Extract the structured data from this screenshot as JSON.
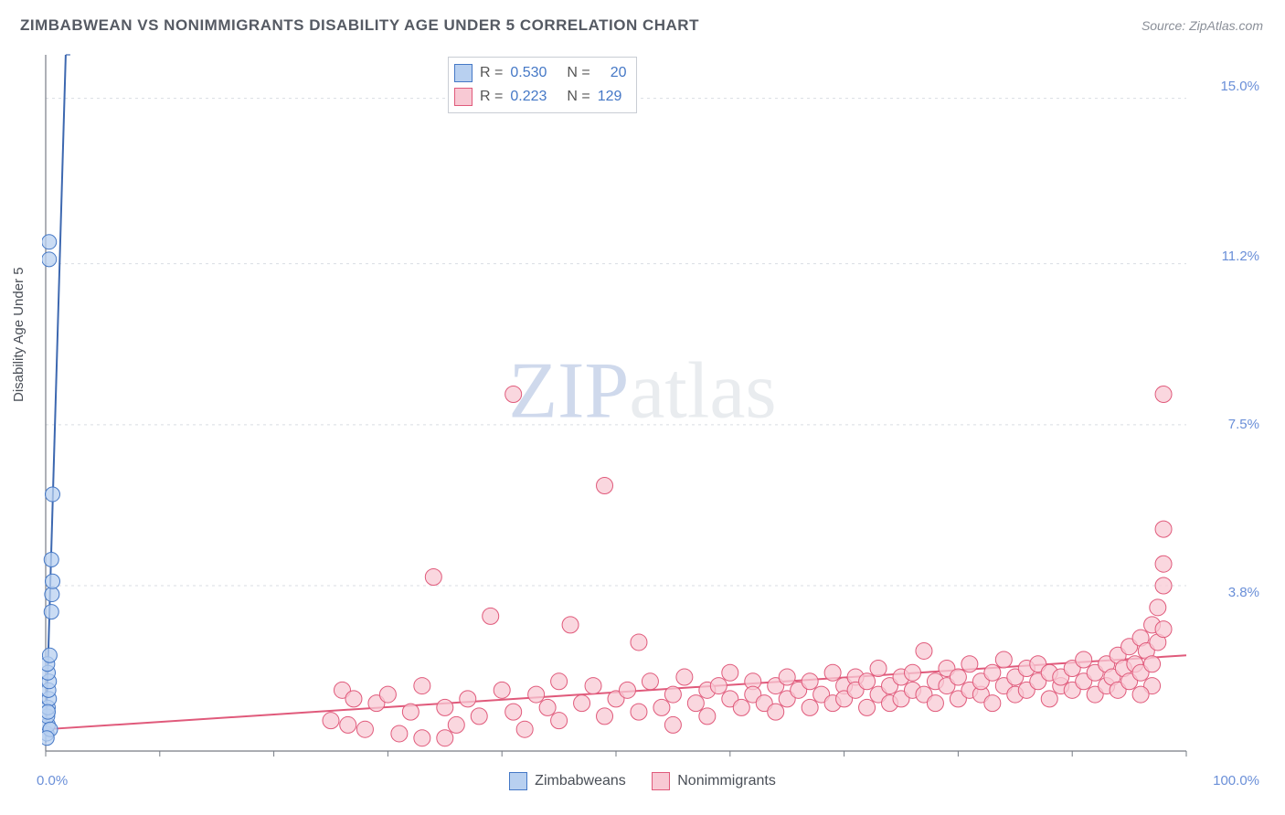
{
  "title": "ZIMBABWEAN VS NONIMMIGRANTS DISABILITY AGE UNDER 5 CORRELATION CHART",
  "source": "Source: ZipAtlas.com",
  "ylabel": "Disability Age Under 5",
  "watermark": {
    "zip": "ZIP",
    "atlas": "atlas"
  },
  "chart": {
    "type": "scatter",
    "background_color": "#ffffff",
    "grid_color": "#d9dde3",
    "axis_color": "#777c85",
    "label_color": "#6a8fd8",
    "x": {
      "min": 0,
      "max": 100,
      "labels": [
        {
          "v": 0,
          "t": "0.0%"
        },
        {
          "v": 100,
          "t": "100.0%"
        }
      ],
      "ticks_step": 10
    },
    "y": {
      "min": 0,
      "max": 16,
      "gridlines": [
        3.8,
        7.5,
        11.2,
        15.0
      ],
      "labels": [
        {
          "v": 3.8,
          "t": "3.8%"
        },
        {
          "v": 7.5,
          "t": "7.5%"
        },
        {
          "v": 11.2,
          "t": "11.2%"
        },
        {
          "v": 15.0,
          "t": "15.0%"
        }
      ]
    },
    "series": [
      {
        "name": "Zimbabweans",
        "marker_fill": "#b8d0f0",
        "marker_stroke": "#4578c6",
        "marker_r": 8,
        "trend": {
          "slope": 9.0,
          "intercept": 0.2,
          "color": "#3d68b0",
          "width": 2,
          "dash_ext": true
        },
        "R": "0.530",
        "N": "20",
        "points": [
          {
            "x": 0.1,
            "y": 0.4
          },
          {
            "x": 0.2,
            "y": 0.6
          },
          {
            "x": 0.15,
            "y": 0.8
          },
          {
            "x": 0.2,
            "y": 1.0
          },
          {
            "x": 0.3,
            "y": 1.2
          },
          {
            "x": 0.25,
            "y": 1.4
          },
          {
            "x": 0.3,
            "y": 1.6
          },
          {
            "x": 0.2,
            "y": 1.8
          },
          {
            "x": 0.15,
            "y": 2.0
          },
          {
            "x": 0.35,
            "y": 2.2
          },
          {
            "x": 0.4,
            "y": 0.5
          },
          {
            "x": 0.1,
            "y": 0.3
          },
          {
            "x": 0.5,
            "y": 3.2
          },
          {
            "x": 0.55,
            "y": 3.6
          },
          {
            "x": 0.6,
            "y": 3.9
          },
          {
            "x": 0.5,
            "y": 4.4
          },
          {
            "x": 0.6,
            "y": 5.9
          },
          {
            "x": 0.3,
            "y": 11.3
          },
          {
            "x": 0.3,
            "y": 11.7
          },
          {
            "x": 0.2,
            "y": 0.9
          }
        ]
      },
      {
        "name": "Nonimmigrants",
        "marker_fill": "#f8c9d4",
        "marker_stroke": "#e05a7b",
        "marker_r": 9,
        "trend": {
          "slope": 0.017,
          "intercept": 0.5,
          "color": "#e05a7b",
          "width": 2,
          "dash_ext": false
        },
        "R": "0.223",
        "N": "129",
        "points": [
          {
            "x": 25,
            "y": 0.7
          },
          {
            "x": 26,
            "y": 1.4
          },
          {
            "x": 26.5,
            "y": 0.6
          },
          {
            "x": 27,
            "y": 1.2
          },
          {
            "x": 28,
            "y": 0.5
          },
          {
            "x": 29,
            "y": 1.1
          },
          {
            "x": 30,
            "y": 1.3
          },
          {
            "x": 31,
            "y": 0.4
          },
          {
            "x": 32,
            "y": 0.9
          },
          {
            "x": 33,
            "y": 1.5
          },
          {
            "x": 33,
            "y": 0.3
          },
          {
            "x": 34,
            "y": 4.0
          },
          {
            "x": 35,
            "y": 1.0
          },
          {
            "x": 35,
            "y": 0.3
          },
          {
            "x": 36,
            "y": 0.6
          },
          {
            "x": 37,
            "y": 1.2
          },
          {
            "x": 38,
            "y": 0.8
          },
          {
            "x": 39,
            "y": 3.1
          },
          {
            "x": 40,
            "y": 1.4
          },
          {
            "x": 41,
            "y": 0.9
          },
          {
            "x": 41,
            "y": 8.2
          },
          {
            "x": 42,
            "y": 0.5
          },
          {
            "x": 43,
            "y": 1.3
          },
          {
            "x": 44,
            "y": 1.0
          },
          {
            "x": 45,
            "y": 1.6
          },
          {
            "x": 45,
            "y": 0.7
          },
          {
            "x": 46,
            "y": 2.9
          },
          {
            "x": 47,
            "y": 1.1
          },
          {
            "x": 48,
            "y": 1.5
          },
          {
            "x": 49,
            "y": 0.8
          },
          {
            "x": 49,
            "y": 6.1
          },
          {
            "x": 50,
            "y": 1.2
          },
          {
            "x": 51,
            "y": 1.4
          },
          {
            "x": 52,
            "y": 0.9
          },
          {
            "x": 52,
            "y": 2.5
          },
          {
            "x": 53,
            "y": 1.6
          },
          {
            "x": 54,
            "y": 1.0
          },
          {
            "x": 55,
            "y": 1.3
          },
          {
            "x": 55,
            "y": 0.6
          },
          {
            "x": 56,
            "y": 1.7
          },
          {
            "x": 57,
            "y": 1.1
          },
          {
            "x": 58,
            "y": 1.4
          },
          {
            "x": 58,
            "y": 0.8
          },
          {
            "x": 59,
            "y": 1.5
          },
          {
            "x": 60,
            "y": 1.2
          },
          {
            "x": 60,
            "y": 1.8
          },
          {
            "x": 61,
            "y": 1.0
          },
          {
            "x": 62,
            "y": 1.6
          },
          {
            "x": 62,
            "y": 1.3
          },
          {
            "x": 63,
            "y": 1.1
          },
          {
            "x": 64,
            "y": 1.5
          },
          {
            "x": 64,
            "y": 0.9
          },
          {
            "x": 65,
            "y": 1.7
          },
          {
            "x": 65,
            "y": 1.2
          },
          {
            "x": 66,
            "y": 1.4
          },
          {
            "x": 67,
            "y": 1.0
          },
          {
            "x": 67,
            "y": 1.6
          },
          {
            "x": 68,
            "y": 1.3
          },
          {
            "x": 69,
            "y": 1.8
          },
          {
            "x": 69,
            "y": 1.1
          },
          {
            "x": 70,
            "y": 1.5
          },
          {
            "x": 70,
            "y": 1.2
          },
          {
            "x": 71,
            "y": 1.7
          },
          {
            "x": 71,
            "y": 1.4
          },
          {
            "x": 72,
            "y": 1.0
          },
          {
            "x": 72,
            "y": 1.6
          },
          {
            "x": 73,
            "y": 1.3
          },
          {
            "x": 73,
            "y": 1.9
          },
          {
            "x": 74,
            "y": 1.1
          },
          {
            "x": 74,
            "y": 1.5
          },
          {
            "x": 75,
            "y": 1.7
          },
          {
            "x": 75,
            "y": 1.2
          },
          {
            "x": 76,
            "y": 1.4
          },
          {
            "x": 76,
            "y": 1.8
          },
          {
            "x": 77,
            "y": 2.3
          },
          {
            "x": 77,
            "y": 1.3
          },
          {
            "x": 78,
            "y": 1.6
          },
          {
            "x": 78,
            "y": 1.1
          },
          {
            "x": 79,
            "y": 1.5
          },
          {
            "x": 79,
            "y": 1.9
          },
          {
            "x": 80,
            "y": 1.2
          },
          {
            "x": 80,
            "y": 1.7
          },
          {
            "x": 81,
            "y": 1.4
          },
          {
            "x": 81,
            "y": 2.0
          },
          {
            "x": 82,
            "y": 1.3
          },
          {
            "x": 82,
            "y": 1.6
          },
          {
            "x": 83,
            "y": 1.8
          },
          {
            "x": 83,
            "y": 1.1
          },
          {
            "x": 84,
            "y": 1.5
          },
          {
            "x": 84,
            "y": 2.1
          },
          {
            "x": 85,
            "y": 1.3
          },
          {
            "x": 85,
            "y": 1.7
          },
          {
            "x": 86,
            "y": 1.9
          },
          {
            "x": 86,
            "y": 1.4
          },
          {
            "x": 87,
            "y": 1.6
          },
          {
            "x": 87,
            "y": 2.0
          },
          {
            "x": 88,
            "y": 1.2
          },
          {
            "x": 88,
            "y": 1.8
          },
          {
            "x": 89,
            "y": 1.5
          },
          {
            "x": 89,
            "y": 1.7
          },
          {
            "x": 90,
            "y": 1.9
          },
          {
            "x": 90,
            "y": 1.4
          },
          {
            "x": 91,
            "y": 2.1
          },
          {
            "x": 91,
            "y": 1.6
          },
          {
            "x": 92,
            "y": 1.8
          },
          {
            "x": 92,
            "y": 1.3
          },
          {
            "x": 93,
            "y": 2.0
          },
          {
            "x": 93,
            "y": 1.5
          },
          {
            "x": 93.5,
            "y": 1.7
          },
          {
            "x": 94,
            "y": 2.2
          },
          {
            "x": 94,
            "y": 1.4
          },
          {
            "x": 94.5,
            "y": 1.9
          },
          {
            "x": 95,
            "y": 2.4
          },
          {
            "x": 95,
            "y": 1.6
          },
          {
            "x": 95.5,
            "y": 2.0
          },
          {
            "x": 96,
            "y": 2.6
          },
          {
            "x": 96,
            "y": 1.8
          },
          {
            "x": 96.5,
            "y": 2.3
          },
          {
            "x": 97,
            "y": 2.9
          },
          {
            "x": 97,
            "y": 2.0
          },
          {
            "x": 97.5,
            "y": 3.3
          },
          {
            "x": 97.5,
            "y": 2.5
          },
          {
            "x": 98,
            "y": 3.8
          },
          {
            "x": 98,
            "y": 2.8
          },
          {
            "x": 98,
            "y": 4.3
          },
          {
            "x": 98,
            "y": 5.1
          },
          {
            "x": 98,
            "y": 8.2
          },
          {
            "x": 97,
            "y": 1.5
          },
          {
            "x": 96,
            "y": 1.3
          }
        ]
      }
    ]
  },
  "bottom_legend": [
    {
      "swatch": "blue",
      "label": "Zimbabweans"
    },
    {
      "swatch": "pink",
      "label": "Nonimmigrants"
    }
  ]
}
